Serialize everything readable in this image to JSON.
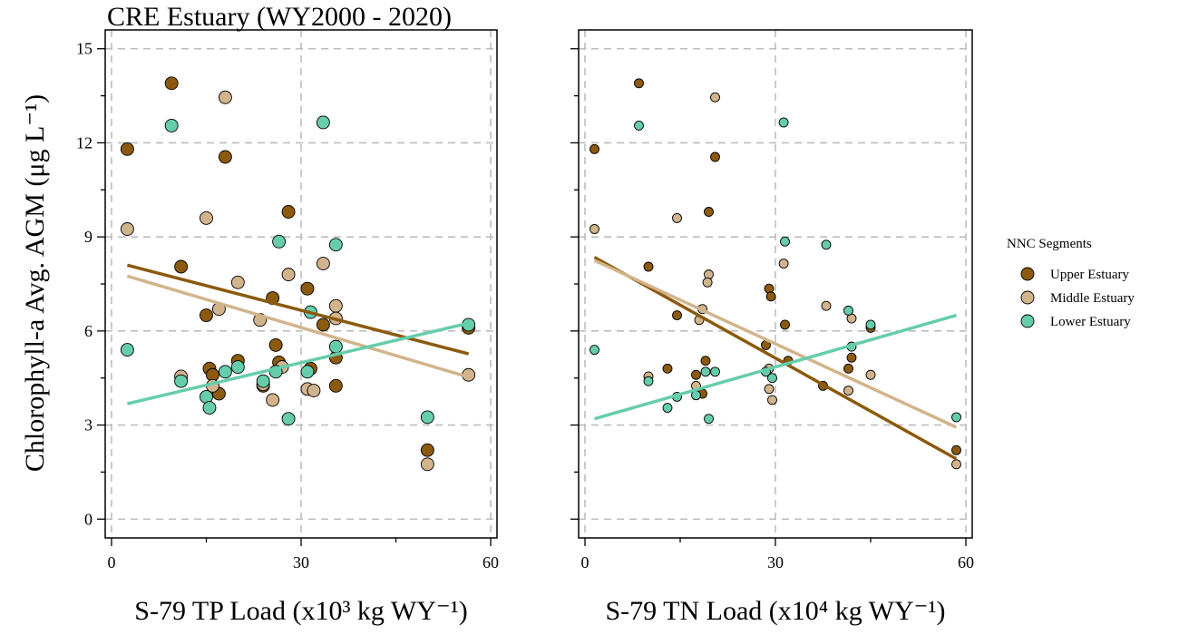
{
  "title": "CRE Estuary (WY2000 - 2020)",
  "ylabel": "Chlorophyll-a Avg. AGM (μg L⁻¹)",
  "legend": {
    "title": "NNC Segments",
    "placement": "right",
    "items": [
      {
        "label": "Upper Estuary",
        "color": "#8B5A0E"
      },
      {
        "label": "Middle Estuary",
        "color": "#D2B48C"
      },
      {
        "label": "Lower Estuary",
        "color": "#66CDAA"
      }
    ]
  },
  "chart_data": [
    {
      "type": "scatter",
      "xlabel": "S-79 TP Load (x10³ kg WY⁻¹)",
      "ylabel": "Chlorophyll-a Avg. AGM (μg L⁻¹)",
      "xlim": [
        -1,
        61
      ],
      "ylim": [
        -0.6,
        15.6
      ],
      "xticks": [
        0,
        30,
        60
      ],
      "yticks": [
        0,
        3,
        6,
        9,
        12,
        15
      ],
      "grid": true,
      "series": [
        {
          "name": "Upper Estuary",
          "color": "#8B5A0E",
          "points": [
            [
              2.5,
              11.8
            ],
            [
              9.5,
              13.9
            ],
            [
              11,
              8.05
            ],
            [
              15,
              6.5
            ],
            [
              15.5,
              4.8
            ],
            [
              16,
              4.6
            ],
            [
              17,
              4.0
            ],
            [
              18,
              11.55
            ],
            [
              20,
              5.05
            ],
            [
              24,
              4.25
            ],
            [
              25.5,
              7.05
            ],
            [
              26,
              5.55
            ],
            [
              26.5,
              5.0
            ],
            [
              28,
              9.8
            ],
            [
              31,
              7.35
            ],
            [
              31.5,
              4.8
            ],
            [
              33.5,
              6.2
            ],
            [
              35.5,
              4.25
            ],
            [
              35.5,
              5.15
            ],
            [
              50,
              2.2
            ],
            [
              56.5,
              6.1
            ]
          ],
          "fit": [
            [
              2.5,
              8.1
            ],
            [
              56.5,
              5.27
            ]
          ]
        },
        {
          "name": "Middle Estuary",
          "color": "#D2B48C",
          "points": [
            [
              2.5,
              9.25
            ],
            [
              11,
              4.55
            ],
            [
              15,
              9.6
            ],
            [
              16,
              4.25
            ],
            [
              17,
              6.7
            ],
            [
              18,
              13.45
            ],
            [
              20,
              7.55
            ],
            [
              23.5,
              6.35
            ],
            [
              24,
              4.3
            ],
            [
              25.5,
              3.8
            ],
            [
              27,
              4.85
            ],
            [
              28,
              7.8
            ],
            [
              31,
              4.15
            ],
            [
              32,
              4.1
            ],
            [
              33.5,
              8.15
            ],
            [
              35.5,
              6.8
            ],
            [
              35.5,
              6.4
            ],
            [
              50,
              1.75
            ],
            [
              56.5,
              4.6
            ]
          ],
          "fit": [
            [
              2.5,
              7.75
            ],
            [
              56.5,
              4.53
            ]
          ]
        },
        {
          "name": "Lower Estuary",
          "color": "#66CDAA",
          "points": [
            [
              2.5,
              5.4
            ],
            [
              9.5,
              12.55
            ],
            [
              11,
              4.4
            ],
            [
              15,
              3.9
            ],
            [
              15.5,
              3.55
            ],
            [
              18,
              4.7
            ],
            [
              20,
              4.85
            ],
            [
              24,
              4.4
            ],
            [
              26,
              4.7
            ],
            [
              26.5,
              8.85
            ],
            [
              28,
              3.2
            ],
            [
              31,
              4.7
            ],
            [
              31.5,
              6.6
            ],
            [
              33.5,
              12.65
            ],
            [
              35.5,
              5.5
            ],
            [
              35.5,
              8.75
            ],
            [
              50,
              3.25
            ],
            [
              56.5,
              6.2
            ]
          ],
          "fit": [
            [
              2.5,
              3.68
            ],
            [
              56.5,
              6.25
            ]
          ]
        }
      ]
    },
    {
      "type": "scatter",
      "xlabel": "S-79 TN Load (x10⁴ kg WY⁻¹)",
      "xlim": [
        -1,
        61
      ],
      "ylim": [
        -0.6,
        15.6
      ],
      "xticks": [
        0,
        30,
        60
      ],
      "yticks": [
        0,
        3,
        6,
        9,
        12,
        15
      ],
      "grid": true,
      "series": [
        {
          "name": "Upper Estuary",
          "color": "#8B5A0E",
          "points": [
            [
              1.5,
              11.8
            ],
            [
              8.5,
              13.9
            ],
            [
              10,
              8.05
            ],
            [
              14.5,
              6.5
            ],
            [
              13,
              4.8
            ],
            [
              17.5,
              4.6
            ],
            [
              18.5,
              4.0
            ],
            [
              20.5,
              11.55
            ],
            [
              19,
              5.05
            ],
            [
              19.5,
              9.8
            ],
            [
              28.5,
              5.55
            ],
            [
              29,
              7.35
            ],
            [
              29.3,
              7.1
            ],
            [
              31.5,
              6.2
            ],
            [
              32,
              5.05
            ],
            [
              37.5,
              4.25
            ],
            [
              41.5,
              4.8
            ],
            [
              42,
              5.15
            ],
            [
              45,
              6.1
            ],
            [
              58.5,
              2.2
            ]
          ],
          "fit": [
            [
              1.5,
              8.35
            ],
            [
              58.5,
              1.92
            ]
          ]
        },
        {
          "name": "Middle Estuary",
          "color": "#D2B48C",
          "points": [
            [
              1.5,
              9.25
            ],
            [
              10,
              4.55
            ],
            [
              14.5,
              9.6
            ],
            [
              17.5,
              4.25
            ],
            [
              18.5,
              6.7
            ],
            [
              20.5,
              13.45
            ],
            [
              19.5,
              7.8
            ],
            [
              19.3,
              7.55
            ],
            [
              18,
              6.35
            ],
            [
              29,
              4.15
            ],
            [
              29.5,
              3.8
            ],
            [
              31.3,
              8.15
            ],
            [
              29,
              4.8
            ],
            [
              38,
              6.8
            ],
            [
              42,
              6.4
            ],
            [
              41.5,
              4.1
            ],
            [
              45,
              4.6
            ],
            [
              58.5,
              1.75
            ]
          ],
          "fit": [
            [
              1.5,
              8.25
            ],
            [
              58.5,
              2.93
            ]
          ]
        },
        {
          "name": "Lower Estuary",
          "color": "#66CDAA",
          "points": [
            [
              1.5,
              5.4
            ],
            [
              8.5,
              12.55
            ],
            [
              10,
              4.4
            ],
            [
              13,
              3.55
            ],
            [
              14.5,
              3.9
            ],
            [
              17.5,
              3.95
            ],
            [
              19,
              4.7
            ],
            [
              19.5,
              3.2
            ],
            [
              20.5,
              4.7
            ],
            [
              28.5,
              4.7
            ],
            [
              29.5,
              4.5
            ],
            [
              31.3,
              12.65
            ],
            [
              31.5,
              8.85
            ],
            [
              38,
              8.75
            ],
            [
              41.5,
              6.65
            ],
            [
              42,
              5.5
            ],
            [
              45,
              6.2
            ],
            [
              58.5,
              3.25
            ]
          ],
          "fit": [
            [
              1.5,
              3.2
            ],
            [
              58.5,
              6.5
            ]
          ]
        }
      ]
    }
  ]
}
